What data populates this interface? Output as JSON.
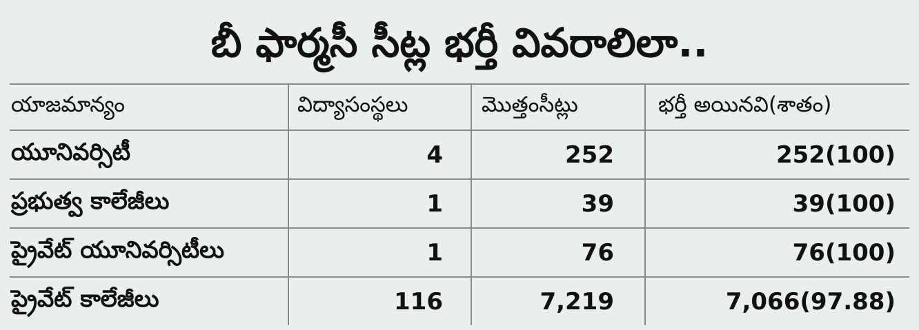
{
  "title": "బీ ఫార్మసీ సీట్ల భర్తీ వివరాలిలా..",
  "table": {
    "headers": [
      "యాజమాన్యం",
      "విద్యాసంస్థలు",
      "మొత్తంసీట్లు",
      "భర్తీ అయినవి(శాతం)"
    ],
    "rows": [
      [
        "యూనివర్సిటీ",
        "4",
        "252",
        "252(100)"
      ],
      [
        "ప్రభుత్వ కాలేజీలు",
        "1",
        "39",
        "39(100)"
      ],
      [
        "ప్రైవేట్ యూనివర్సిటీలు",
        "1",
        "76",
        "76(100)"
      ],
      [
        "ప్రైవేట్ కాలేజీలు",
        "116",
        "7,219",
        "7,066(97.88)"
      ]
    ]
  }
}
